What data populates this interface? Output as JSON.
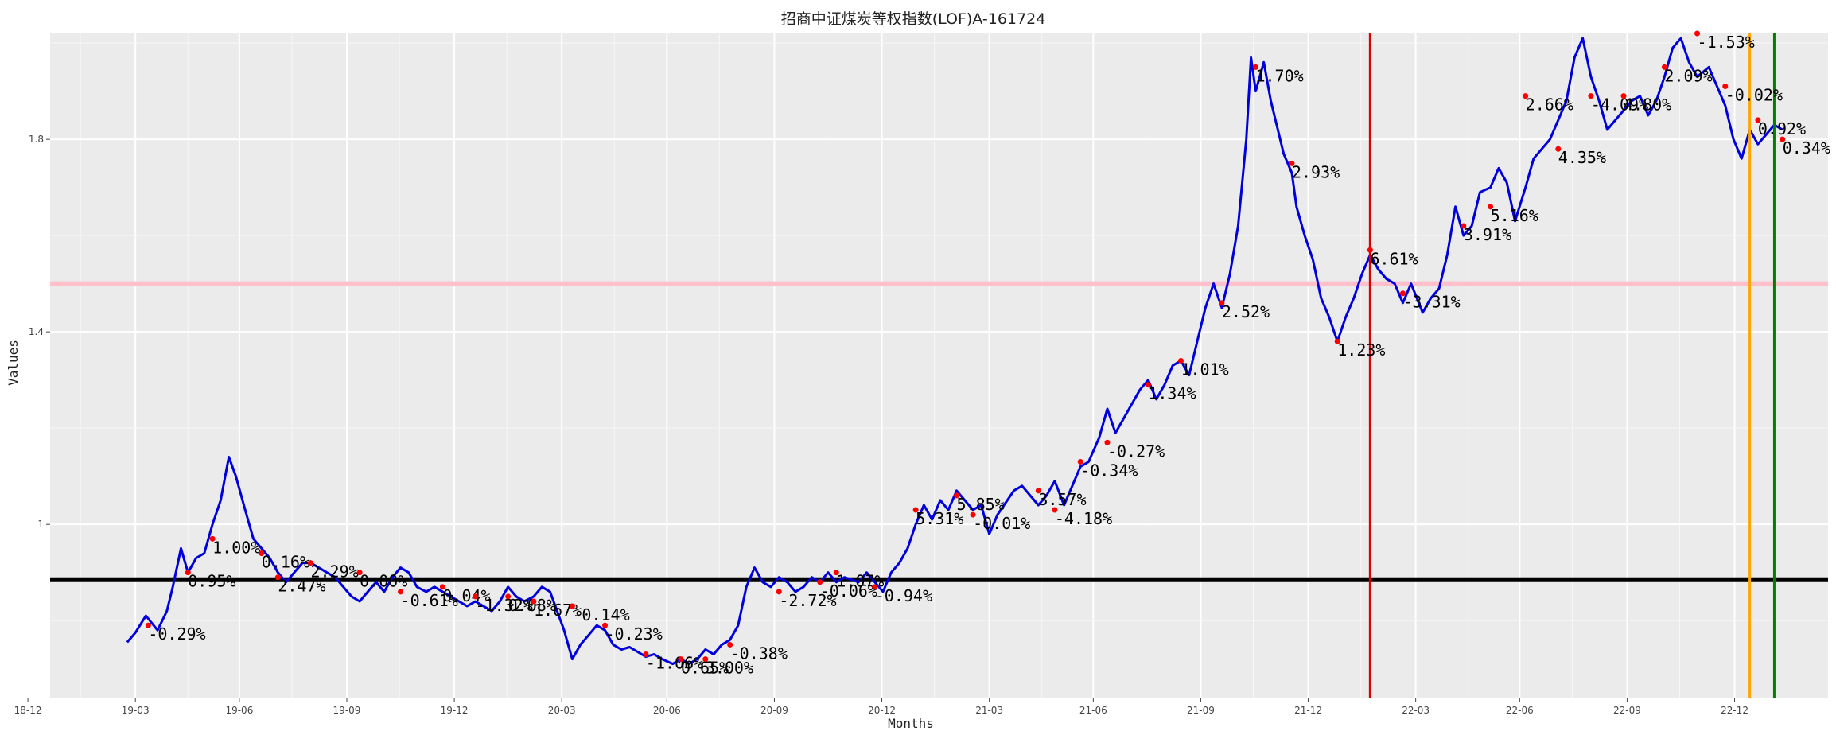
{
  "chart_data": {
    "type": "line",
    "title": "招商中证煤炭等权指数(LOF)A-161724",
    "xlabel": "Months",
    "ylabel": "Values",
    "x_tick_labels": [
      "18-12",
      "19-03",
      "19-06",
      "19-09",
      "19-12",
      "20-03",
      "20-06",
      "20-09",
      "20-12",
      "21-03",
      "21-06",
      "21-09",
      "21-12",
      "22-03",
      "22-06",
      "22-09",
      "22-12"
    ],
    "y_ticks": [
      1.0,
      1.4,
      1.8
    ],
    "y_tick_labels": [
      "1",
      "1.4",
      "1.8"
    ],
    "ylim": [
      0.64,
      2.02
    ],
    "x_start": "2018-11-20",
    "x_end": "2023-01-20",
    "grid": true,
    "series": [
      {
        "color": "#0000dd",
        "points": [
          [
            "2019-01-25",
            0.755
          ],
          [
            "2019-02-01",
            0.775
          ],
          [
            "2019-02-10",
            0.81
          ],
          [
            "2019-02-20",
            0.78
          ],
          [
            "2019-02-28",
            0.82
          ],
          [
            "2019-03-05",
            0.87
          ],
          [
            "2019-03-12",
            0.95
          ],
          [
            "2019-03-18",
            0.9
          ],
          [
            "2019-03-25",
            0.93
          ],
          [
            "2019-04-01",
            0.94
          ],
          [
            "2019-04-08",
            1.0
          ],
          [
            "2019-04-15",
            1.05
          ],
          [
            "2019-04-22",
            1.14
          ],
          [
            "2019-04-28",
            1.1
          ],
          [
            "2019-05-06",
            1.03
          ],
          [
            "2019-05-13",
            0.97
          ],
          [
            "2019-05-20",
            0.95
          ],
          [
            "2019-05-27",
            0.93
          ],
          [
            "2019-06-03",
            0.9
          ],
          [
            "2019-06-10",
            0.88
          ],
          [
            "2019-06-17",
            0.9
          ],
          [
            "2019-06-24",
            0.92
          ],
          [
            "2019-07-01",
            0.92
          ],
          [
            "2019-07-08",
            0.91
          ],
          [
            "2019-07-15",
            0.9
          ],
          [
            "2019-07-22",
            0.89
          ],
          [
            "2019-07-29",
            0.87
          ],
          [
            "2019-08-05",
            0.85
          ],
          [
            "2019-08-12",
            0.84
          ],
          [
            "2019-08-19",
            0.86
          ],
          [
            "2019-08-26",
            0.88
          ],
          [
            "2019-09-02",
            0.86
          ],
          [
            "2019-09-09",
            0.89
          ],
          [
            "2019-09-16",
            0.91
          ],
          [
            "2019-09-23",
            0.9
          ],
          [
            "2019-09-30",
            0.87
          ],
          [
            "2019-10-08",
            0.86
          ],
          [
            "2019-10-15",
            0.87
          ],
          [
            "2019-10-22",
            0.86
          ],
          [
            "2019-10-29",
            0.85
          ],
          [
            "2019-11-05",
            0.84
          ],
          [
            "2019-11-12",
            0.83
          ],
          [
            "2019-11-19",
            0.84
          ],
          [
            "2019-11-26",
            0.83
          ],
          [
            "2019-12-03",
            0.82
          ],
          [
            "2019-12-10",
            0.84
          ],
          [
            "2019-12-17",
            0.87
          ],
          [
            "2019-12-24",
            0.85
          ],
          [
            "2019-12-31",
            0.84
          ],
          [
            "2020-01-08",
            0.85
          ],
          [
            "2020-01-15",
            0.87
          ],
          [
            "2020-01-22",
            0.86
          ],
          [
            "2020-02-03",
            0.78
          ],
          [
            "2020-02-10",
            0.72
          ],
          [
            "2020-02-17",
            0.75
          ],
          [
            "2020-02-24",
            0.77
          ],
          [
            "2020-03-02",
            0.79
          ],
          [
            "2020-03-09",
            0.78
          ],
          [
            "2020-03-16",
            0.75
          ],
          [
            "2020-03-23",
            0.74
          ],
          [
            "2020-03-30",
            0.745
          ],
          [
            "2020-04-06",
            0.735
          ],
          [
            "2020-04-13",
            0.725
          ],
          [
            "2020-04-20",
            0.73
          ],
          [
            "2020-04-27",
            0.72
          ],
          [
            "2020-05-06",
            0.71
          ],
          [
            "2020-05-13",
            0.72
          ],
          [
            "2020-05-20",
            0.71
          ],
          [
            "2020-05-27",
            0.72
          ],
          [
            "2020-06-03",
            0.74
          ],
          [
            "2020-06-10",
            0.73
          ],
          [
            "2020-06-17",
            0.75
          ],
          [
            "2020-06-24",
            0.76
          ],
          [
            "2020-07-01",
            0.79
          ],
          [
            "2020-07-08",
            0.87
          ],
          [
            "2020-07-15",
            0.91
          ],
          [
            "2020-07-22",
            0.88
          ],
          [
            "2020-07-29",
            0.87
          ],
          [
            "2020-08-05",
            0.89
          ],
          [
            "2020-08-12",
            0.88
          ],
          [
            "2020-08-19",
            0.86
          ],
          [
            "2020-08-26",
            0.87
          ],
          [
            "2020-09-02",
            0.89
          ],
          [
            "2020-09-09",
            0.88
          ],
          [
            "2020-09-16",
            0.9
          ],
          [
            "2020-09-23",
            0.88
          ],
          [
            "2020-09-30",
            0.89
          ],
          [
            "2020-10-12",
            0.88
          ],
          [
            "2020-10-19",
            0.9
          ],
          [
            "2020-10-26",
            0.88
          ],
          [
            "2020-11-02",
            0.86
          ],
          [
            "2020-11-09",
            0.9
          ],
          [
            "2020-11-16",
            0.92
          ],
          [
            "2020-11-23",
            0.95
          ],
          [
            "2020-11-30",
            1.0
          ],
          [
            "2020-12-07",
            1.04
          ],
          [
            "2020-12-14",
            1.01
          ],
          [
            "2020-12-21",
            1.05
          ],
          [
            "2020-12-28",
            1.03
          ],
          [
            "2021-01-04",
            1.07
          ],
          [
            "2021-01-11",
            1.05
          ],
          [
            "2021-01-18",
            1.03
          ],
          [
            "2021-01-25",
            1.04
          ],
          [
            "2021-02-01",
            0.98
          ],
          [
            "2021-02-08",
            1.02
          ],
          [
            "2021-02-22",
            1.07
          ],
          [
            "2021-03-01",
            1.08
          ],
          [
            "2021-03-08",
            1.06
          ],
          [
            "2021-03-15",
            1.04
          ],
          [
            "2021-03-22",
            1.06
          ],
          [
            "2021-03-29",
            1.09
          ],
          [
            "2021-04-06",
            1.04
          ],
          [
            "2021-04-13",
            1.08
          ],
          [
            "2021-04-20",
            1.12
          ],
          [
            "2021-04-27",
            1.13
          ],
          [
            "2021-05-06",
            1.18
          ],
          [
            "2021-05-13",
            1.24
          ],
          [
            "2021-05-20",
            1.19
          ],
          [
            "2021-05-27",
            1.22
          ],
          [
            "2021-06-03",
            1.25
          ],
          [
            "2021-06-10",
            1.28
          ],
          [
            "2021-06-17",
            1.3
          ],
          [
            "2021-06-24",
            1.26
          ],
          [
            "2021-07-01",
            1.29
          ],
          [
            "2021-07-08",
            1.33
          ],
          [
            "2021-07-15",
            1.34
          ],
          [
            "2021-07-22",
            1.31
          ],
          [
            "2021-07-29",
            1.38
          ],
          [
            "2021-08-05",
            1.45
          ],
          [
            "2021-08-12",
            1.5
          ],
          [
            "2021-08-19",
            1.45
          ],
          [
            "2021-08-26",
            1.52
          ],
          [
            "2021-09-02",
            1.62
          ],
          [
            "2021-09-09",
            1.8
          ],
          [
            "2021-09-13",
            1.97
          ],
          [
            "2021-09-17",
            1.9
          ],
          [
            "2021-09-24",
            1.96
          ],
          [
            "2021-09-30",
            1.88
          ],
          [
            "2021-10-11",
            1.77
          ],
          [
            "2021-10-18",
            1.73
          ],
          [
            "2021-10-22",
            1.66
          ],
          [
            "2021-10-29",
            1.6
          ],
          [
            "2021-11-05",
            1.55
          ],
          [
            "2021-11-12",
            1.47
          ],
          [
            "2021-11-19",
            1.43
          ],
          [
            "2021-11-26",
            1.38
          ],
          [
            "2021-12-03",
            1.43
          ],
          [
            "2021-12-10",
            1.47
          ],
          [
            "2021-12-17",
            1.52
          ],
          [
            "2021-12-24",
            1.56
          ],
          [
            "2021-12-31",
            1.53
          ],
          [
            "2022-01-07",
            1.51
          ],
          [
            "2022-01-14",
            1.5
          ],
          [
            "2022-01-21",
            1.46
          ],
          [
            "2022-01-28",
            1.5
          ],
          [
            "2022-02-07",
            1.44
          ],
          [
            "2022-02-14",
            1.47
          ],
          [
            "2022-02-21",
            1.49
          ],
          [
            "2022-02-28",
            1.56
          ],
          [
            "2022-03-07",
            1.66
          ],
          [
            "2022-03-14",
            1.6
          ],
          [
            "2022-03-21",
            1.62
          ],
          [
            "2022-03-28",
            1.69
          ],
          [
            "2022-04-06",
            1.7
          ],
          [
            "2022-04-13",
            1.74
          ],
          [
            "2022-04-20",
            1.71
          ],
          [
            "2022-04-27",
            1.63
          ],
          [
            "2022-05-06",
            1.7
          ],
          [
            "2022-05-13",
            1.76
          ],
          [
            "2022-05-20",
            1.78
          ],
          [
            "2022-05-27",
            1.8
          ],
          [
            "2022-06-03",
            1.84
          ],
          [
            "2022-06-10",
            1.88
          ],
          [
            "2022-06-17",
            1.97
          ],
          [
            "2022-06-24",
            2.01
          ],
          [
            "2022-07-01",
            1.93
          ],
          [
            "2022-07-08",
            1.88
          ],
          [
            "2022-07-15",
            1.82
          ],
          [
            "2022-07-22",
            1.84
          ],
          [
            "2022-07-29",
            1.86
          ],
          [
            "2022-08-05",
            1.88
          ],
          [
            "2022-08-12",
            1.89
          ],
          [
            "2022-08-19",
            1.85
          ],
          [
            "2022-08-26",
            1.88
          ],
          [
            "2022-09-02",
            1.93
          ],
          [
            "2022-09-09",
            1.99
          ],
          [
            "2022-09-16",
            2.01
          ],
          [
            "2022-09-23",
            1.96
          ],
          [
            "2022-09-30",
            1.93
          ],
          [
            "2022-10-10",
            1.95
          ],
          [
            "2022-10-17",
            1.91
          ],
          [
            "2022-10-24",
            1.87
          ],
          [
            "2022-10-31",
            1.8
          ],
          [
            "2022-11-07",
            1.76
          ],
          [
            "2022-11-14",
            1.82
          ],
          [
            "2022-11-21",
            1.79
          ],
          [
            "2022-11-28",
            1.81
          ],
          [
            "2022-12-05",
            1.83
          ],
          [
            "2022-12-12",
            1.82
          ]
        ]
      }
    ],
    "annotations": [
      {
        "date": "2019-02-12",
        "y": 0.79,
        "label": "-0.29%"
      },
      {
        "date": "2019-03-18",
        "y": 0.9,
        "label": "0.95%"
      },
      {
        "date": "2019-04-08",
        "y": 0.97,
        "label": "1.00%"
      },
      {
        "date": "2019-05-20",
        "y": 0.94,
        "label": "0.16%"
      },
      {
        "date": "2019-06-03",
        "y": 0.89,
        "label": "2.47%"
      },
      {
        "date": "2019-07-01",
        "y": 0.92,
        "label": "2.29%"
      },
      {
        "date": "2019-08-12",
        "y": 0.9,
        "label": "0.00%"
      },
      {
        "date": "2019-09-16",
        "y": 0.86,
        "label": "-0.61%"
      },
      {
        "date": "2019-10-22",
        "y": 0.87,
        "label": "0.04%"
      },
      {
        "date": "2019-11-19",
        "y": 0.85,
        "label": "-1.32%"
      },
      {
        "date": "2019-12-17",
        "y": 0.85,
        "label": "0.08%"
      },
      {
        "date": "2020-01-08",
        "y": 0.84,
        "label": "1.67%"
      },
      {
        "date": "2020-02-10",
        "y": 0.83,
        "label": "-0.14%"
      },
      {
        "date": "2020-03-09",
        "y": 0.79,
        "label": "-0.23%"
      },
      {
        "date": "2020-04-13",
        "y": 0.73,
        "label": "-1.06%"
      },
      {
        "date": "2020-05-13",
        "y": 0.72,
        "label": "0.65%"
      },
      {
        "date": "2020-06-03",
        "y": 0.72,
        "label": "3.00%"
      },
      {
        "date": "2020-06-24",
        "y": 0.75,
        "label": "-0.38%"
      },
      {
        "date": "2020-08-05",
        "y": 0.86,
        "label": "-2.72%"
      },
      {
        "date": "2020-09-09",
        "y": 0.88,
        "label": "-0.06%"
      },
      {
        "date": "2020-09-23",
        "y": 0.9,
        "label": "1.07%"
      },
      {
        "date": "2020-10-26",
        "y": 0.87,
        "label": "-0.94%"
      },
      {
        "date": "2020-11-30",
        "y": 1.03,
        "label": "5.31%"
      },
      {
        "date": "2021-01-04",
        "y": 1.06,
        "label": "5.85%"
      },
      {
        "date": "2021-01-18",
        "y": 1.02,
        "label": "-0.01%"
      },
      {
        "date": "2021-03-15",
        "y": 1.07,
        "label": "3.57%"
      },
      {
        "date": "2021-03-29",
        "y": 1.03,
        "label": "-4.18%"
      },
      {
        "date": "2021-04-20",
        "y": 1.13,
        "label": "-0.34%"
      },
      {
        "date": "2021-05-13",
        "y": 1.17,
        "label": "-0.27%"
      },
      {
        "date": "2021-06-17",
        "y": 1.29,
        "label": "1.34%"
      },
      {
        "date": "2021-07-15",
        "y": 1.34,
        "label": "1.01%"
      },
      {
        "date": "2021-08-19",
        "y": 1.46,
        "label": "2.52%"
      },
      {
        "date": "2021-09-17",
        "y": 1.95,
        "label": "1.70%"
      },
      {
        "date": "2021-10-18",
        "y": 1.75,
        "label": "2.93%"
      },
      {
        "date": "2021-11-26",
        "y": 1.38,
        "label": "1.23%"
      },
      {
        "date": "2021-12-24",
        "y": 1.57,
        "label": "6.61%"
      },
      {
        "date": "2022-01-21",
        "y": 1.48,
        "label": "-3.31%"
      },
      {
        "date": "2022-03-14",
        "y": 1.62,
        "label": "3.91%"
      },
      {
        "date": "2022-04-06",
        "y": 1.66,
        "label": "5.16%"
      },
      {
        "date": "2022-05-06",
        "y": 1.89,
        "label": "2.66%"
      },
      {
        "date": "2022-06-03",
        "y": 1.78,
        "label": "4.35%"
      },
      {
        "date": "2022-07-01",
        "y": 1.89,
        "label": "-4.09%"
      },
      {
        "date": "2022-07-29",
        "y": 1.89,
        "label": "4.80%"
      },
      {
        "date": "2022-09-02",
        "y": 1.95,
        "label": "2.09%"
      },
      {
        "date": "2022-09-30",
        "y": 2.02,
        "label": "-1.53%"
      },
      {
        "date": "2022-10-24",
        "y": 1.91,
        "label": "-0.02%"
      },
      {
        "date": "2022-11-21",
        "y": 1.84,
        "label": "0.92%"
      },
      {
        "date": "2022-12-12",
        "y": 1.8,
        "label": "0.34%"
      }
    ],
    "reference_lines": [
      {
        "orientation": "horizontal",
        "value": 1.5,
        "color": "#ffc0cb",
        "width": 6
      },
      {
        "orientation": "horizontal",
        "value": 0.885,
        "color": "#000000",
        "width": 6
      },
      {
        "orientation": "vertical",
        "date": "2021-12-24",
        "color": "#dd0000",
        "width": 3
      },
      {
        "orientation": "vertical",
        "date": "2022-11-14",
        "color": "#ffa500",
        "width": 3
      },
      {
        "orientation": "vertical",
        "date": "2022-12-05",
        "color": "#008000",
        "width": 3
      }
    ]
  }
}
